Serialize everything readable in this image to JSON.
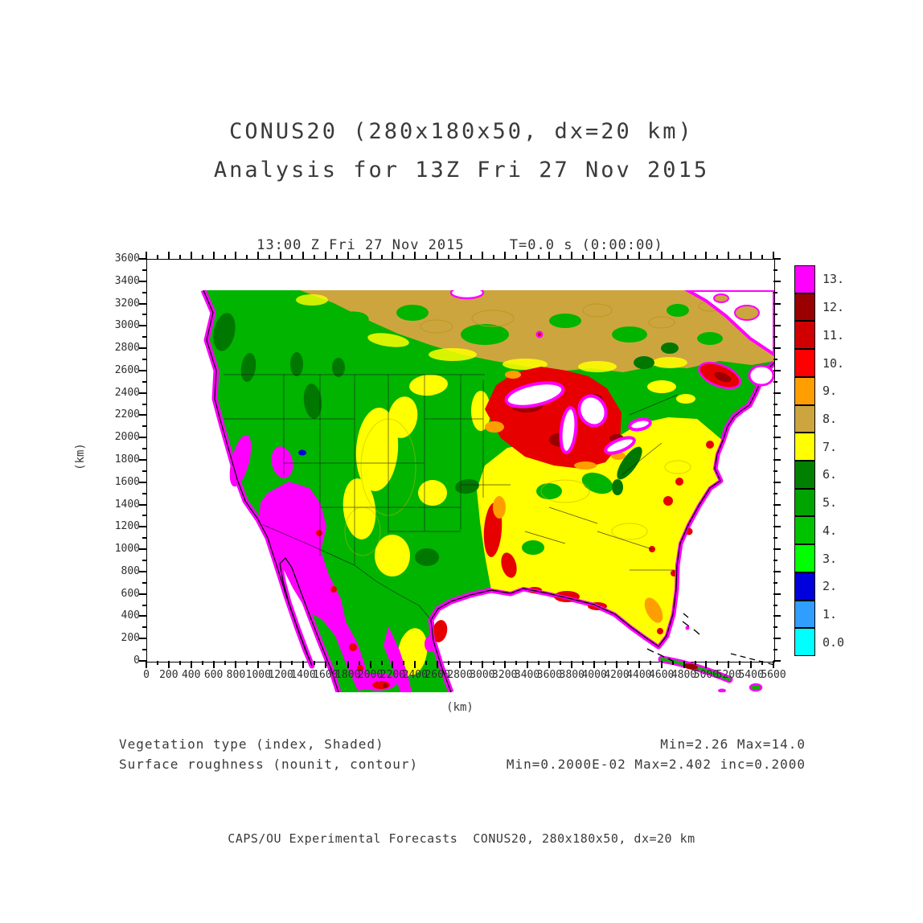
{
  "header": {
    "title_line1": "CONUS20 (280x180x50, dx=20 km)",
    "title_line2": "Analysis for 13Z Fri 27 Nov 2015"
  },
  "plot": {
    "title": "13:00 Z Fri 27 Nov 2015     T=0.0 s (0:00:00)",
    "xlabel": "(km)",
    "ylabel": "(km)"
  },
  "annotations": {
    "shaded_field_label": "Vegetation type (index, Shaded)",
    "shaded_field_stats": "Min=2.26 Max=14.0",
    "contour_field_label": "Surface roughness (nounit, contour)",
    "contour_field_stats": "Min=0.2000E-02 Max=2.402 inc=0.2000"
  },
  "footer": {
    "credit": "CAPS/OU Experimental Forecasts  CONUS20, 280x180x50, dx=20 km"
  },
  "chart_data": {
    "type": "heatmap",
    "title": "13:00 Z Fri 27 Nov 2015     T=0.0 s (0:00:00)",
    "xlabel": "(km)",
    "ylabel": "(km)",
    "xlim": [
      0,
      5600
    ],
    "ylim": [
      0,
      3600
    ],
    "minor_tick_step": 100,
    "x_ticks": [
      0,
      200,
      400,
      600,
      800,
      1000,
      1200,
      1400,
      1600,
      1800,
      2000,
      2200,
      2400,
      2600,
      2800,
      3000,
      3200,
      3400,
      3600,
      3800,
      4000,
      4200,
      4400,
      4600,
      4800,
      5000,
      5200,
      5400,
      5600
    ],
    "y_ticks": [
      0,
      200,
      400,
      600,
      800,
      1000,
      1200,
      1400,
      1600,
      1800,
      2000,
      2200,
      2400,
      2600,
      2800,
      3000,
      3200,
      3400,
      3600
    ],
    "grid": false,
    "shaded_field": {
      "name": "Vegetation type (index)",
      "min": 2.26,
      "max": 14.0,
      "regions": [
        {
          "area": "northern Canada band",
          "dominant_index": 8
        },
        {
          "area": "Pacific Northwest, Rockies, western Canada",
          "dominant_index": "4-6"
        },
        {
          "area": "Great Plains",
          "dominant_index": "4-7"
        },
        {
          "area": "Eastern and Southeastern US",
          "dominant_index": 7
        },
        {
          "area": "Upper Midwest / Great Lakes corn belt",
          "dominant_index": "10-12"
        },
        {
          "area": "Desert Southwest, interior California, northwest Mexico",
          "dominant_index": 13
        },
        {
          "area": "coastal fringes around all shorelines",
          "dominant_index": 13
        },
        {
          "area": "oceans, Great Lakes, Gulf of Mexico",
          "dominant_index": "unshaded (white)"
        }
      ]
    },
    "contour_field": {
      "name": "Surface roughness (nounit)",
      "min": 0.002,
      "max": 2.402,
      "interval": 0.2
    },
    "colorbar": {
      "position": "right",
      "labels": [
        "13.",
        "12.",
        "11.",
        "10.",
        "9.",
        "8.",
        "7.",
        "6.",
        "5.",
        "4.",
        "3.",
        "2.",
        "1.",
        "0.0"
      ],
      "colors": [
        "#ff00ff",
        "#9b0000",
        "#d10000",
        "#ff0000",
        "#ff9e00",
        "#cda53e",
        "#ffff00",
        "#008000",
        "#00a400",
        "#00c300",
        "#00ff00",
        "#0000dc",
        "#2f9eff",
        "#00ffff"
      ]
    }
  }
}
